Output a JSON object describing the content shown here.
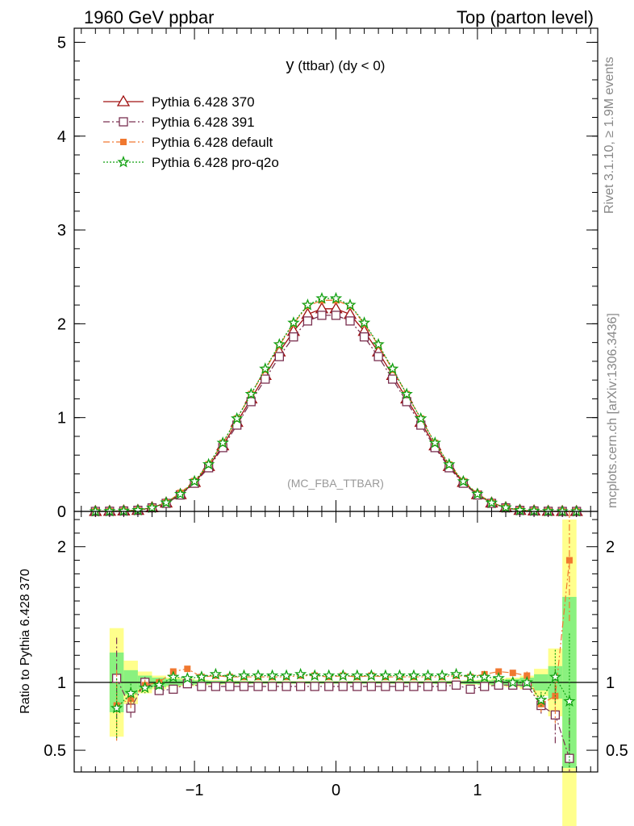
{
  "header": {
    "left": "1960 GeV ppbar",
    "right": "Top (parton level)"
  },
  "side_labels": {
    "rivet": "Rivet 3.1.10, ≥ 1.9M events",
    "mcplots": "mcplots.cern.ch [arXiv:1306.3436]"
  },
  "chart_data": [
    {
      "type": "line",
      "title": "y (ttbar) (dy < 0)",
      "title_main": "y",
      "title_rest": "(ttbar) (dy < 0)",
      "watermark": "(MC_FBA_TTBAR)",
      "xlim": [
        -1.85,
        1.85
      ],
      "ylim": [
        0,
        5.15
      ],
      "yticks": [
        0,
        1,
        2,
        3,
        4,
        5
      ],
      "ytick_labels": [
        "0",
        "1",
        "2",
        "3",
        "4",
        "5"
      ],
      "legend_position": "top-left",
      "x": [
        -1.7,
        -1.6,
        -1.5,
        -1.4,
        -1.3,
        -1.2,
        -1.1,
        -1.0,
        -0.9,
        -0.8,
        -0.7,
        -0.6,
        -0.5,
        -0.4,
        -0.3,
        -0.2,
        -0.1,
        0.0,
        0.1,
        0.2,
        0.3,
        0.4,
        0.5,
        0.6,
        0.7,
        0.8,
        0.9,
        1.0,
        1.1,
        1.2,
        1.3,
        1.4,
        1.5,
        1.6,
        1.7
      ],
      "series": [
        {
          "name": "Pythia 6.428 370",
          "color": "#a01010",
          "marker": "triangle-open",
          "dash": "solid",
          "values": [
            0,
            0.002,
            0.006,
            0.012,
            0.04,
            0.09,
            0.18,
            0.31,
            0.48,
            0.7,
            0.95,
            1.2,
            1.45,
            1.7,
            1.92,
            2.1,
            2.16,
            2.16,
            2.1,
            1.92,
            1.7,
            1.45,
            1.2,
            0.95,
            0.7,
            0.48,
            0.31,
            0.18,
            0.09,
            0.04,
            0.012,
            0.006,
            0.002,
            0,
            0
          ]
        },
        {
          "name": "Pythia 6.428 391",
          "color": "#7a3050",
          "marker": "square-open",
          "dash": "dashdot",
          "values": [
            0,
            0.002,
            0.005,
            0.012,
            0.038,
            0.086,
            0.175,
            0.3,
            0.465,
            0.68,
            0.92,
            1.17,
            1.41,
            1.65,
            1.86,
            2.03,
            2.09,
            2.09,
            2.03,
            1.86,
            1.65,
            1.41,
            1.17,
            0.92,
            0.68,
            0.465,
            0.3,
            0.175,
            0.086,
            0.038,
            0.011,
            0.005,
            0.0015,
            0,
            0
          ]
        },
        {
          "name": "Pythia 6.428 default",
          "color": "#f07830",
          "marker": "square-filled",
          "dash": "dashdot",
          "values": [
            0,
            0.0017,
            0.005,
            0.012,
            0.04,
            0.095,
            0.198,
            0.323,
            0.502,
            0.73,
            0.99,
            1.25,
            1.51,
            1.77,
            2.0,
            2.19,
            2.25,
            2.25,
            2.19,
            2.0,
            1.77,
            1.51,
            1.25,
            0.99,
            0.73,
            0.5,
            0.322,
            0.19,
            0.094,
            0.042,
            0.013,
            0.0054,
            0.0018,
            0,
            0
          ]
        },
        {
          "name": "Pythia 6.428 pro-q2o",
          "color": "#10a010",
          "marker": "star",
          "dash": "dotted",
          "values": [
            0,
            0.0016,
            0.0055,
            0.012,
            0.039,
            0.094,
            0.185,
            0.321,
            0.501,
            0.73,
            0.99,
            1.25,
            1.52,
            1.78,
            2.01,
            2.2,
            2.27,
            2.27,
            2.2,
            2.01,
            1.78,
            1.52,
            1.25,
            0.99,
            0.73,
            0.5,
            0.32,
            0.186,
            0.092,
            0.041,
            0.012,
            0.0052,
            0.0021,
            0,
            0
          ]
        }
      ]
    },
    {
      "type": "line",
      "ylabel": "Ratio to Pythia 6.428 370",
      "xlim": [
        -1.85,
        1.85
      ],
      "ylim": [
        0.34,
        2.26
      ],
      "yticks": [
        0.5,
        1,
        2
      ],
      "ytick_labels": [
        "0.5",
        "1",
        "2"
      ],
      "xticks": [
        -1,
        0,
        1
      ],
      "xtick_labels": [
        "−1",
        "0",
        "1"
      ],
      "reference_line": 1,
      "band_x": [
        -1.6,
        -1.5,
        -1.4,
        -1.3,
        -1.2,
        -1.1,
        -1.0,
        -0.9,
        -0.8,
        -0.7,
        -0.6,
        -0.5,
        -0.4,
        -0.3,
        -0.2,
        -0.1,
        0.0,
        0.1,
        0.2,
        0.3,
        0.4,
        0.5,
        0.6,
        0.7,
        0.8,
        0.9,
        1.0,
        1.1,
        1.2,
        1.3,
        1.4,
        1.5,
        1.6
      ],
      "band_inner": [
        0.22,
        0.09,
        0.05,
        0.035,
        0.025,
        0.02,
        0.015,
        0.012,
        0.01,
        0.01,
        0.008,
        0.008,
        0.008,
        0.008,
        0.008,
        0.008,
        0.008,
        0.008,
        0.008,
        0.008,
        0.008,
        0.008,
        0.008,
        0.01,
        0.01,
        0.012,
        0.015,
        0.02,
        0.025,
        0.035,
        0.06,
        0.12,
        0.63
      ],
      "band_outer": [
        0.4,
        0.16,
        0.08,
        0.05,
        0.035,
        0.028,
        0.02,
        0.016,
        0.014,
        0.012,
        0.01,
        0.01,
        0.01,
        0.01,
        0.01,
        0.01,
        0.01,
        0.01,
        0.01,
        0.01,
        0.01,
        0.01,
        0.01,
        0.012,
        0.014,
        0.016,
        0.02,
        0.028,
        0.035,
        0.05,
        0.1,
        0.25,
        1.2
      ],
      "series": [
        {
          "name": "Pythia 6.428 391",
          "color": "#7a3050",
          "marker": "square-open",
          "dash": "dashdot",
          "x": [
            -1.55,
            -1.45,
            -1.35,
            -1.25,
            -1.15,
            -1.05,
            -0.95,
            -0.85,
            -0.75,
            -0.65,
            -0.55,
            -0.45,
            -0.35,
            -0.25,
            -0.15,
            -0.05,
            0.05,
            0.15,
            0.25,
            0.35,
            0.45,
            0.55,
            0.65,
            0.75,
            0.85,
            0.95,
            1.05,
            1.15,
            1.25,
            1.35,
            1.45,
            1.55,
            1.65
          ],
          "values": [
            1.03,
            0.81,
            1.0,
            0.94,
            0.95,
            0.99,
            0.97,
            0.97,
            0.97,
            0.97,
            0.97,
            0.97,
            0.97,
            0.97,
            0.97,
            0.97,
            0.97,
            0.97,
            0.97,
            0.97,
            0.97,
            0.97,
            0.97,
            0.97,
            0.98,
            0.95,
            0.97,
            0.98,
            0.98,
            0.98,
            0.83,
            0.76,
            0.44
          ],
          "errors": [
            0.3,
            0.07,
            0.04,
            0.03,
            0.02,
            0.015,
            0.01,
            0.01,
            0.008,
            0.008,
            0.006,
            0.006,
            0.006,
            0.006,
            0.006,
            0.006,
            0.006,
            0.006,
            0.006,
            0.006,
            0.006,
            0.006,
            0.006,
            0.008,
            0.008,
            0.01,
            0.01,
            0.015,
            0.02,
            0.03,
            0.06,
            0.22,
            0.3
          ]
        },
        {
          "name": "Pythia 6.428 default",
          "color": "#f07830",
          "marker": "square-filled",
          "dash": "dashdot",
          "x": [
            -1.55,
            -1.45,
            -1.35,
            -1.25,
            -1.15,
            -1.05,
            -0.95,
            -0.85,
            -0.75,
            -0.65,
            -0.55,
            -0.45,
            -0.35,
            -0.25,
            -0.15,
            -0.05,
            0.05,
            0.15,
            0.25,
            0.35,
            0.45,
            0.55,
            0.65,
            0.75,
            0.85,
            0.95,
            1.05,
            1.15,
            1.25,
            1.35,
            1.45,
            1.55,
            1.65
          ],
          "values": [
            0.83,
            0.88,
            0.98,
            1.0,
            1.08,
            1.1,
            1.04,
            1.05,
            1.04,
            1.04,
            1.04,
            1.04,
            1.04,
            1.05,
            1.05,
            1.04,
            1.05,
            1.04,
            1.05,
            1.04,
            1.04,
            1.04,
            1.04,
            1.04,
            1.05,
            1.04,
            1.06,
            1.08,
            1.07,
            1.05,
            0.84,
            0.9,
            1.9
          ],
          "errors": [
            0.26,
            0.07,
            0.04,
            0.03,
            0.02,
            0.015,
            0.01,
            0.01,
            0.008,
            0.008,
            0.006,
            0.006,
            0.006,
            0.006,
            0.006,
            0.006,
            0.006,
            0.006,
            0.006,
            0.006,
            0.006,
            0.006,
            0.006,
            0.008,
            0.008,
            0.01,
            0.01,
            0.015,
            0.02,
            0.03,
            0.06,
            0.2,
            0.45
          ]
        },
        {
          "name": "Pythia 6.428 pro-q2o",
          "color": "#10a010",
          "marker": "star",
          "dash": "dotted",
          "x": [
            -1.55,
            -1.45,
            -1.35,
            -1.25,
            -1.15,
            -1.05,
            -0.95,
            -0.85,
            -0.75,
            -0.65,
            -0.55,
            -0.45,
            -0.35,
            -0.25,
            -0.15,
            -0.05,
            0.05,
            0.15,
            0.25,
            0.35,
            0.45,
            0.55,
            0.65,
            0.75,
            0.85,
            0.95,
            1.05,
            1.15,
            1.25,
            1.35,
            1.45,
            1.55,
            1.65
          ],
          "values": [
            0.81,
            0.92,
            0.96,
            0.98,
            1.04,
            1.03,
            1.04,
            1.06,
            1.04,
            1.05,
            1.05,
            1.05,
            1.05,
            1.06,
            1.05,
            1.05,
            1.05,
            1.05,
            1.05,
            1.05,
            1.05,
            1.05,
            1.05,
            1.05,
            1.06,
            1.04,
            1.04,
            1.03,
            1.0,
            1.0,
            0.87,
            1.04,
            0.86
          ],
          "errors": [
            0.22,
            0.07,
            0.04,
            0.03,
            0.02,
            0.015,
            0.01,
            0.01,
            0.008,
            0.008,
            0.006,
            0.006,
            0.006,
            0.006,
            0.006,
            0.006,
            0.006,
            0.006,
            0.006,
            0.006,
            0.006,
            0.006,
            0.006,
            0.008,
            0.008,
            0.01,
            0.01,
            0.015,
            0.02,
            0.03,
            0.06,
            0.2,
            0.5
          ]
        }
      ]
    }
  ]
}
